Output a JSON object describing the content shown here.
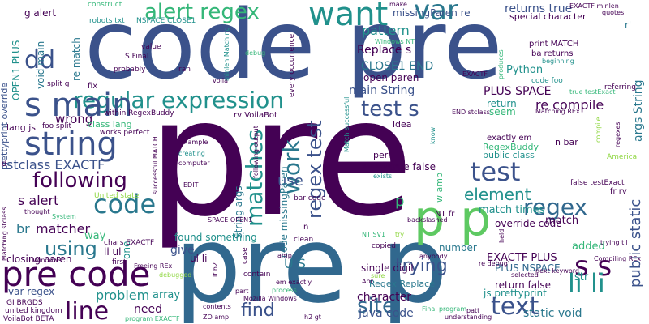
{
  "palette": {
    "dark_purple": "#440154",
    "indigo": "#3b528b",
    "steel": "#31688e",
    "teal": "#21918c",
    "green_teal": "#35b779",
    "green": "#5ec962",
    "lime": "#90d743",
    "yellow": "#c8e020",
    "grey_teal": "#2a788e"
  },
  "words": {
    "code_pre": "code pre",
    "pre_p_main": "pre",
    "pre_p_bottom": "pre p",
    "p_p": "p p",
    "pre_code": "pre code",
    "want": "want",
    "alert_regex": "alert regex",
    "regular_expression": "regular expression",
    "string": "string",
    "following": "following",
    "code": "code",
    "test_s": "test s",
    "test": "test",
    "regex": "regex",
    "matches": "matches",
    "work": "work",
    "regex_test": "regex test",
    "s_s": "s s",
    "li_li": "li li",
    "text": "text",
    "line": "line",
    "site": "site",
    "using": "using",
    "trying": "trying",
    "dd": "dd",
    "var": "var",
    "returns_true": "returns true",
    "pattern": "pattern",
    "replace_s": "Replace s",
    "close1_end": "CLOSE1 END",
    "main_string": "main String",
    "re_compile": "re compile",
    "element": "element",
    "find": "find",
    "use": "use",
    "s_alert": "s alert",
    "matcher": "matcher",
    "problem": "problem",
    "stclass_exactf": "stclass EXACTF",
    "wrong": "wrong",
    "string_args": "String args",
    "code_missingparen": "code missingParen",
    "character": "character",
    "java_code": "Java code",
    "static_void": "static void",
    "match": "match",
    "match_times": "match times",
    "public_static": "public static",
    "args_string": "args String",
    "python": "Python",
    "plus_space": "PLUS SPACE",
    "exactf_plus": "EXACTF PLUS",
    "plus_nspace": "PLUS NSPACE",
    "return_false": "return false",
    "s_main": "s main",
    "open1_plus": "OPEN1 PLUS",
    "void_main": "void main",
    "re_match": "re match",
    "g_alert": "g alert",
    "missingparen_re": "missingParen re",
    "special_character": "special character",
    "open_paren": "open paren",
    "closing_paren": "closing paren",
    "var_regex": "var regex",
    "number": "number",
    "single_digit": "single digit",
    "regex_replace": "Regex Replace",
    "need": "need",
    "array": "array",
    "give": "give",
    "found_something": "found something",
    "way": "way",
    "br": "br",
    "li_ul": "li ul",
    "ul_li": "ul li",
    "u_s": "U S",
    "p_small": "p",
    "one": "one",
    "str": "str",
    "added": "added",
    "seem": "seem",
    "return": "return",
    "true_false": "true false",
    "regexbuddy": "RegexBuddy",
    "public_class": "public class",
    "exactly_em": "exactly em",
    "n_bar": "n bar",
    "idea": "idea",
    "perl": "perl",
    "w_amp": "w amp",
    "nt_fr": "NT fr",
    "override_code": "override code",
    "false_testexact": "false testExact",
    "fr_rv": "fr rv",
    "r_mark": "r'",
    "print_match": "print MATCH",
    "ba_returns": "ba returns",
    "code_foo": "code foo",
    "prettyprint_override": "prettyprint override",
    "lang_js": "lang js",
    "foo_split": "foo split",
    "class_lang": "class lang",
    "works_perfect": "works perfect",
    "rv_voilabot": "rv VoilaBot",
    "within_regexbuddy": "within RegexBuddy",
    "fix": "fix",
    "split_g": "split g",
    "probably": "probably",
    "ran": "ran",
    "value": "value",
    "s_final": "S Final",
    "robots_txt": "robots txt",
    "nspace_close1": "NSPACE CLOSE1",
    "construct": "construct",
    "make": "make",
    "exactf_minlen": "EXACTF minlen",
    "quotes": "quotes",
    "windows_nt": "Windows NT",
    "debug": "debug",
    "voila": "voila",
    "minlen_matching": "minlen Matching",
    "every_occurrence": "every occurrence",
    "match_successful": "Match successful",
    "produces": "produces",
    "exactf_small": "EXACTF",
    "end_stclass": "END stclass",
    "matching_rex": "Matching REx",
    "true_testexact": "true testExact",
    "compiling_rex": "Compiling REx",
    "regexes": "regexes",
    "compile": "compile",
    "referring": "referring",
    "beginning": "beginning",
    "america": "America",
    "united_state": "United state",
    "chars_exactf": "chars EXACTF",
    "successful_match": "successful MATCH",
    "creating": "creating",
    "computer": "computer",
    "example": "example",
    "edit": "EDIT",
    "windows_u": "Windows U",
    "exists": "exists",
    "know": "know",
    "bar_code": "bar code",
    "backslashed": "backslashed",
    "try": "try",
    "copied": "copied",
    "nt_sv": "NT SV1",
    "anybody": "anybody",
    "sure": "sure",
    "apr": "Apr",
    "gi_brgds": "GI BRGDS",
    "united_kingdom": "united kingdom",
    "voilabot_beta": "VoilaBot BETA",
    "program_exactf": "program EXACTF",
    "zo_amp": "ZO amp",
    "h2_gt": "h2 gt",
    "mozilla_windows": "Mozilla Windows",
    "contents": "contents",
    "final_program": "Final program",
    "understanding": "understanding",
    "patt": "patt",
    "next_keyword": "next keyword",
    "selected": "selected",
    "trying_til": "trying til",
    "re_debug": "re debug'",
    "freeing_rex": "Freeing REx",
    "debugged": "debugged",
    "first": "first",
    "u_windows": "U Windows",
    "lt_h2": "lt h2",
    "part": "part",
    "process": "process",
    "em_exactly": "em exactly",
    "contain": "contain",
    "case": "case",
    "clean": "clean",
    "amp": "amp",
    "n_small": "n",
    "space_open1": "SPACE OPEN1",
    "thought": "thought",
    "system": "System",
    "matching_stclass": "Matching stclass",
    "d_stclass": "d",
    "following_output": "following output",
    "held": "held",
    "js_prettyprint": "js prettyprint"
  }
}
